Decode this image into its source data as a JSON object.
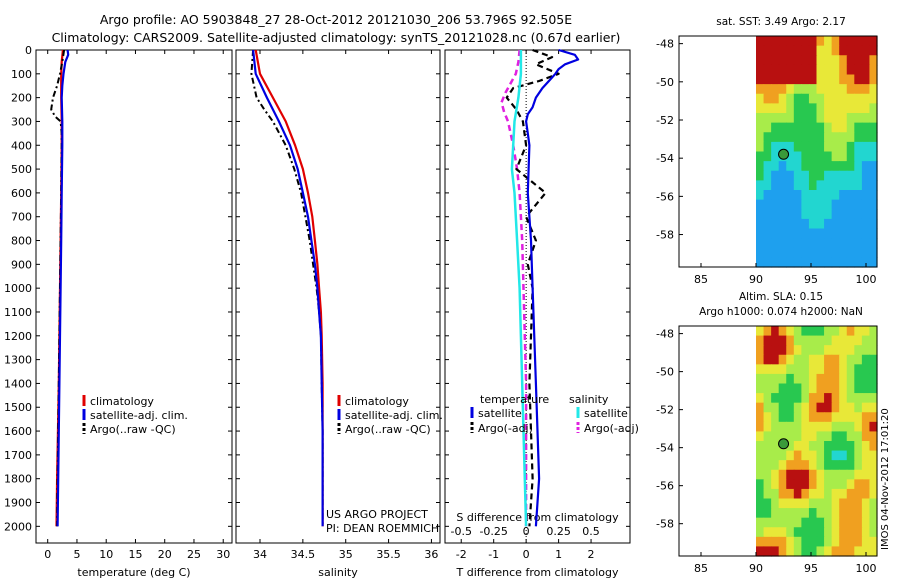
{
  "header": {
    "line1": "Argo profile: AO 5903848_27 28-Oct-2012 20121030_206 53.796S 92.505E",
    "line2": "Climatology: CARS2009. Satellite-adjusted climatology: synTS_20121028.nc (0.67d earlier)"
  },
  "colors": {
    "climatology": "#e00000",
    "satellite": "#0000e0",
    "argo": "#000000",
    "sat_salinity": "#22e8e8",
    "argo_salinity": "#e020e0"
  },
  "chart_data": [
    {
      "type": "line",
      "name": "temperature",
      "xlabel": "temperature (deg C)",
      "ylabel": "",
      "xlim": [
        -2,
        31.5
      ],
      "ylim": [
        2070,
        0
      ],
      "xticks": [
        0,
        5,
        10,
        15,
        20,
        25,
        30
      ],
      "yticks": [
        0,
        100,
        200,
        300,
        400,
        500,
        600,
        700,
        800,
        900,
        1000,
        1100,
        1200,
        1300,
        1400,
        1500,
        1600,
        1700,
        1800,
        1900,
        2000
      ],
      "legend": {
        "position": "bottom-center",
        "entries": [
          "climatology",
          "satellite-adj. clim.",
          "Argo(..raw -QC)"
        ]
      },
      "series": [
        {
          "name": "climatology",
          "depth": [
            0,
            50,
            100,
            200,
            300,
            400,
            600,
            800,
            1000,
            1400,
            1800,
            2000
          ],
          "values": [
            2.6,
            2.4,
            2.3,
            2.3,
            2.4,
            2.4,
            2.3,
            2.2,
            2.1,
            1.9,
            1.6,
            1.5
          ]
        },
        {
          "name": "satellite-adj. clim.",
          "depth": [
            0,
            20,
            50,
            100,
            150,
            200,
            300,
            400,
            600,
            800,
            1000,
            1400,
            1800,
            2000
          ],
          "values": [
            3.4,
            3.5,
            3.0,
            2.7,
            2.5,
            2.4,
            2.5,
            2.5,
            2.4,
            2.3,
            2.2,
            2.0,
            1.8,
            1.7
          ]
        },
        {
          "name": "Argo(..raw -QC)",
          "depth": [
            0,
            50,
            100,
            150,
            200,
            250,
            280,
            300,
            350,
            400,
            600,
            800,
            1000,
            1400,
            1800,
            2000
          ],
          "values": [
            2.8,
            2.5,
            2.1,
            1.6,
            0.9,
            0.6,
            1.3,
            2.2,
            2.4,
            2.4,
            2.3,
            2.2,
            2.1,
            1.9,
            1.7,
            1.6
          ]
        }
      ]
    },
    {
      "type": "line",
      "name": "salinity",
      "xlabel": "salinity",
      "xlim": [
        33.72,
        36.1
      ],
      "ylim": [
        2070,
        0
      ],
      "xticks": [
        34,
        34.5,
        35,
        35.5,
        36
      ],
      "legend": {
        "position": "bottom-center",
        "entries": [
          "climatology",
          "satellite-adj. clim.",
          "Argo(..raw -QC)"
        ]
      },
      "annotation": [
        "US ARGO PROJECT",
        "PI: DEAN ROEMMICH"
      ],
      "series": [
        {
          "name": "climatology",
          "depth": [
            0,
            100,
            200,
            300,
            400,
            500,
            600,
            700,
            800,
            900,
            1000,
            1100,
            1200,
            1400,
            1600,
            1800,
            2000
          ],
          "values": [
            33.95,
            34.0,
            34.15,
            34.3,
            34.41,
            34.5,
            34.56,
            34.61,
            34.64,
            34.67,
            34.69,
            34.71,
            34.72,
            34.73,
            34.73,
            34.73,
            34.73
          ]
        },
        {
          "name": "satellite-adj. clim.",
          "depth": [
            0,
            100,
            200,
            300,
            400,
            500,
            600,
            700,
            800,
            900,
            1000,
            1100,
            1200,
            1400,
            1600,
            1800,
            2000
          ],
          "values": [
            33.92,
            33.95,
            34.08,
            34.22,
            34.35,
            34.44,
            34.5,
            34.56,
            34.6,
            34.64,
            34.67,
            34.69,
            34.71,
            34.72,
            34.73,
            34.73,
            34.73
          ]
        },
        {
          "name": "Argo(..raw -QC)",
          "depth": [
            0,
            100,
            200,
            250,
            300,
            400,
            500,
            600,
            700,
            800,
            900,
            1000,
            1100,
            1200,
            1400,
            1600,
            1800,
            2000
          ],
          "values": [
            33.92,
            33.9,
            33.96,
            34.05,
            34.15,
            34.3,
            34.4,
            34.48,
            34.53,
            34.58,
            34.62,
            34.66,
            34.69,
            34.71,
            34.72,
            34.73,
            34.73,
            34.73
          ]
        }
      ]
    },
    {
      "type": "line",
      "name": "difference",
      "xlabel": "T difference from climatology",
      "x2label": "S difference from climatology",
      "xlim": [
        -2.5,
        3.2
      ],
      "x2lim": [
        -0.625,
        0.8
      ],
      "ylim": [
        2070,
        0
      ],
      "xticks": [
        -2,
        -1,
        0,
        1,
        2
      ],
      "x2ticks": [
        -0.5,
        -0.25,
        0,
        0.25,
        0.5
      ],
      "x2ticklabels": [
        "-0.5",
        "-0.25",
        "0",
        "0.25",
        "0.5"
      ],
      "legend": {
        "position": "bottom-center",
        "temperature_title": "temperature",
        "salinity_title": "salinity",
        "entries_t": [
          "satellite",
          "Argo(-adj)"
        ],
        "entries_s": [
          "satellite",
          "Argo(-adj)"
        ]
      },
      "series": [
        {
          "name": "T satellite",
          "axis": "T",
          "depth": [
            0,
            20,
            40,
            60,
            80,
            100,
            130,
            160,
            200,
            240,
            270,
            300,
            350,
            400,
            600,
            800,
            1000,
            1400,
            1800,
            2000
          ],
          "values": [
            1.0,
            1.5,
            1.6,
            1.2,
            1.0,
            0.9,
            0.7,
            0.5,
            0.3,
            0.2,
            0.05,
            0.0,
            0.05,
            0.1,
            0.05,
            0.15,
            0.2,
            0.3,
            0.4,
            0.3
          ]
        },
        {
          "name": "T Argo(-adj)",
          "axis": "T",
          "depth": [
            0,
            30,
            60,
            100,
            130,
            160,
            200,
            250,
            300,
            400,
            500,
            600,
            700,
            800,
            900,
            1000,
            1400,
            1800,
            2000
          ],
          "values": [
            0.2,
            0.8,
            0.3,
            1.0,
            0.4,
            -0.4,
            -0.6,
            -0.3,
            -0.1,
            0.0,
            -0.3,
            0.6,
            0.0,
            0.3,
            0.05,
            0.2,
            0.1,
            0.2,
            0.1
          ]
        },
        {
          "name": "S satellite",
          "axis": "S",
          "depth": [
            0,
            100,
            200,
            300,
            400,
            500,
            600,
            700,
            800,
            1000,
            1200,
            1400,
            1600,
            1800,
            2000
          ],
          "values": [
            -0.04,
            -0.04,
            -0.06,
            -0.09,
            -0.1,
            -0.11,
            -0.09,
            -0.08,
            -0.07,
            -0.05,
            -0.04,
            -0.03,
            -0.02,
            -0.01,
            0.0
          ]
        },
        {
          "name": "S Argo(-adj)",
          "axis": "S",
          "depth": [
            0,
            50,
            100,
            180,
            220,
            260,
            300,
            400,
            500,
            600,
            700,
            800,
            1000,
            1200,
            1400,
            1600,
            1800,
            2000
          ],
          "values": [
            -0.05,
            -0.06,
            -0.08,
            -0.16,
            -0.19,
            -0.17,
            -0.14,
            -0.1,
            -0.07,
            -0.05,
            -0.04,
            -0.03,
            -0.02,
            -0.01,
            0.0,
            0.0,
            0.0,
            0.0
          ]
        }
      ]
    },
    {
      "type": "heatmap",
      "name": "sst_map",
      "title": "sat. SST: 3.49 Argo: 2.17",
      "xlim": [
        83,
        101
      ],
      "ylim": [
        -59.7,
        -47.6
      ],
      "xticks": [
        85,
        90,
        95,
        100
      ],
      "yticks": [
        -48,
        -50,
        -52,
        -54,
        -56,
        -58
      ],
      "marker": {
        "lon": 92.505,
        "lat": -53.796
      },
      "data_lon_start": 90
    },
    {
      "type": "heatmap",
      "name": "sla_map",
      "title": [
        "Altim. SLA: 0.15",
        "Argo h1000: 0.074 h2000: NaN"
      ],
      "xlim": [
        83,
        101
      ],
      "ylim": [
        -59.7,
        -47.6
      ],
      "xticks": [
        85,
        90,
        95,
        100
      ],
      "yticks": [
        -48,
        -50,
        -52,
        -54,
        -56,
        -58
      ],
      "marker": {
        "lon": 92.505,
        "lat": -53.796
      },
      "data_lon_start": 90
    }
  ],
  "side_stamp": "IMOS 04-Nov-2012 17:01:20"
}
